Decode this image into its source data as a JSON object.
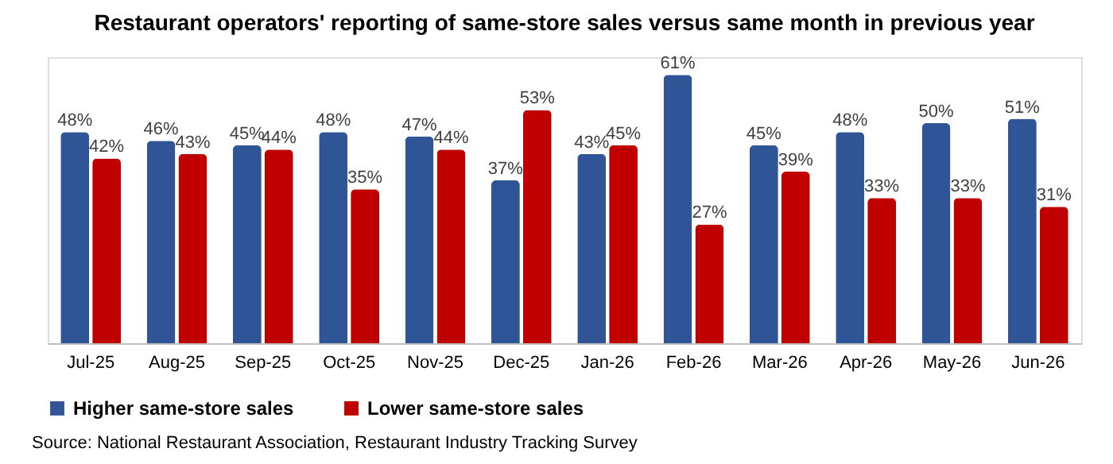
{
  "chart_data": {
    "type": "bar",
    "title": "Restaurant operators' reporting of same-store sales versus same month in previous year",
    "categories": [
      "Jul-25",
      "Aug-25",
      "Sep-25",
      "Oct-25",
      "Nov-25",
      "Dec-25",
      "Jan-26",
      "Feb-26",
      "Mar-26",
      "Apr-26",
      "May-26",
      "Jun-26"
    ],
    "series": [
      {
        "name": "Higher same-store sales",
        "color": "#2f5597",
        "values": [
          48,
          46,
          45,
          48,
          47,
          37,
          43,
          61,
          45,
          48,
          50,
          51
        ],
        "value_labels": [
          "48%",
          "46%",
          "45%",
          "48%",
          "47%",
          "37%",
          "43%",
          "61%",
          "45%",
          "48%",
          "50%",
          "51%"
        ]
      },
      {
        "name": "Lower same-store sales",
        "color": "#c00000",
        "values": [
          42,
          43,
          44,
          35,
          44,
          53,
          45,
          27,
          39,
          33,
          33,
          31
        ],
        "value_labels": [
          "42%",
          "43%",
          "44%",
          "35%",
          "44%",
          "53%",
          "45%",
          "27%",
          "39%",
          "33%",
          "33%",
          "31%"
        ]
      }
    ],
    "tick_labels": "x",
    "legend": "bottom",
    "annotations": [
      "Source: National Restaurant Association, Restaurant Industry Tracking Survey"
    ]
  }
}
